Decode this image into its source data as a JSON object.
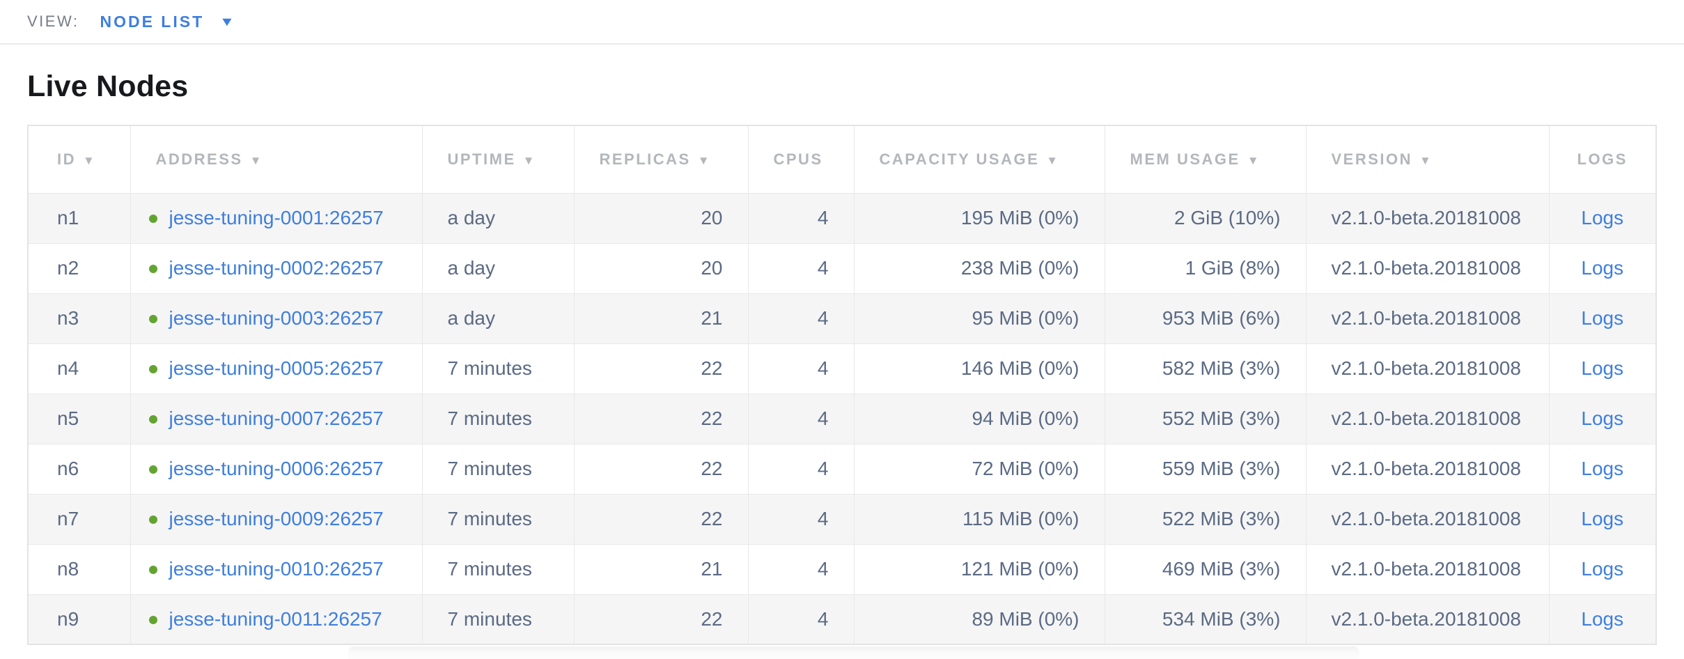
{
  "colors": {
    "link": "#3e7edf",
    "status_ok": "#63a431",
    "header_text": "#b3b6bb",
    "cell_text": "#5b6a84",
    "row_alt_background": "#f5f5f5"
  },
  "icons": {
    "sort_desc": "▼",
    "caret_down": "▼",
    "status_dot": "●"
  },
  "view_bar": {
    "label": "VIEW:",
    "selected": "NODE LIST"
  },
  "page": {
    "title": "Live Nodes"
  },
  "table": {
    "columns": [
      {
        "key": "id",
        "label": "ID",
        "sortable": true,
        "align": "left"
      },
      {
        "key": "address",
        "label": "ADDRESS",
        "sortable": true,
        "align": "left"
      },
      {
        "key": "uptime",
        "label": "UPTIME",
        "sortable": true,
        "align": "left"
      },
      {
        "key": "replicas",
        "label": "REPLICAS",
        "sortable": true,
        "align": "left"
      },
      {
        "key": "cpus",
        "label": "CPUS",
        "sortable": false,
        "align": "left"
      },
      {
        "key": "capacity_usage",
        "label": "CAPACITY USAGE",
        "sortable": true,
        "align": "left"
      },
      {
        "key": "mem_usage",
        "label": "MEM USAGE",
        "sortable": true,
        "align": "left"
      },
      {
        "key": "version",
        "label": "VERSION",
        "sortable": true,
        "align": "left"
      },
      {
        "key": "logs",
        "label": "LOGS",
        "sortable": false,
        "align": "center"
      }
    ],
    "logs_label": "Logs",
    "rows": [
      {
        "id": "n1",
        "address": "jesse-tuning-0001:26257",
        "status": "healthy",
        "uptime": "a day",
        "replicas": "20",
        "cpus": "4",
        "capacity_usage": "195 MiB (0%)",
        "mem_usage": "2 GiB (10%)",
        "version": "v2.1.0-beta.20181008"
      },
      {
        "id": "n2",
        "address": "jesse-tuning-0002:26257",
        "status": "healthy",
        "uptime": "a day",
        "replicas": "20",
        "cpus": "4",
        "capacity_usage": "238 MiB (0%)",
        "mem_usage": "1 GiB (8%)",
        "version": "v2.1.0-beta.20181008"
      },
      {
        "id": "n3",
        "address": "jesse-tuning-0003:26257",
        "status": "healthy",
        "uptime": "a day",
        "replicas": "21",
        "cpus": "4",
        "capacity_usage": "95 MiB (0%)",
        "mem_usage": "953 MiB (6%)",
        "version": "v2.1.0-beta.20181008"
      },
      {
        "id": "n4",
        "address": "jesse-tuning-0005:26257",
        "status": "healthy",
        "uptime": "7 minutes",
        "replicas": "22",
        "cpus": "4",
        "capacity_usage": "146 MiB (0%)",
        "mem_usage": "582 MiB (3%)",
        "version": "v2.1.0-beta.20181008"
      },
      {
        "id": "n5",
        "address": "jesse-tuning-0007:26257",
        "status": "healthy",
        "uptime": "7 minutes",
        "replicas": "22",
        "cpus": "4",
        "capacity_usage": "94 MiB (0%)",
        "mem_usage": "552 MiB (3%)",
        "version": "v2.1.0-beta.20181008"
      },
      {
        "id": "n6",
        "address": "jesse-tuning-0006:26257",
        "status": "healthy",
        "uptime": "7 minutes",
        "replicas": "22",
        "cpus": "4",
        "capacity_usage": "72 MiB (0%)",
        "mem_usage": "559 MiB (3%)",
        "version": "v2.1.0-beta.20181008"
      },
      {
        "id": "n7",
        "address": "jesse-tuning-0009:26257",
        "status": "healthy",
        "uptime": "7 minutes",
        "replicas": "22",
        "cpus": "4",
        "capacity_usage": "115 MiB (0%)",
        "mem_usage": "522 MiB (3%)",
        "version": "v2.1.0-beta.20181008"
      },
      {
        "id": "n8",
        "address": "jesse-tuning-0010:26257",
        "status": "healthy",
        "uptime": "7 minutes",
        "replicas": "21",
        "cpus": "4",
        "capacity_usage": "121 MiB (0%)",
        "mem_usage": "469 MiB (3%)",
        "version": "v2.1.0-beta.20181008"
      },
      {
        "id": "n9",
        "address": "jesse-tuning-0011:26257",
        "status": "healthy",
        "uptime": "7 minutes",
        "replicas": "22",
        "cpus": "4",
        "capacity_usage": "89 MiB (0%)",
        "mem_usage": "534 MiB (3%)",
        "version": "v2.1.0-beta.20181008"
      }
    ]
  }
}
